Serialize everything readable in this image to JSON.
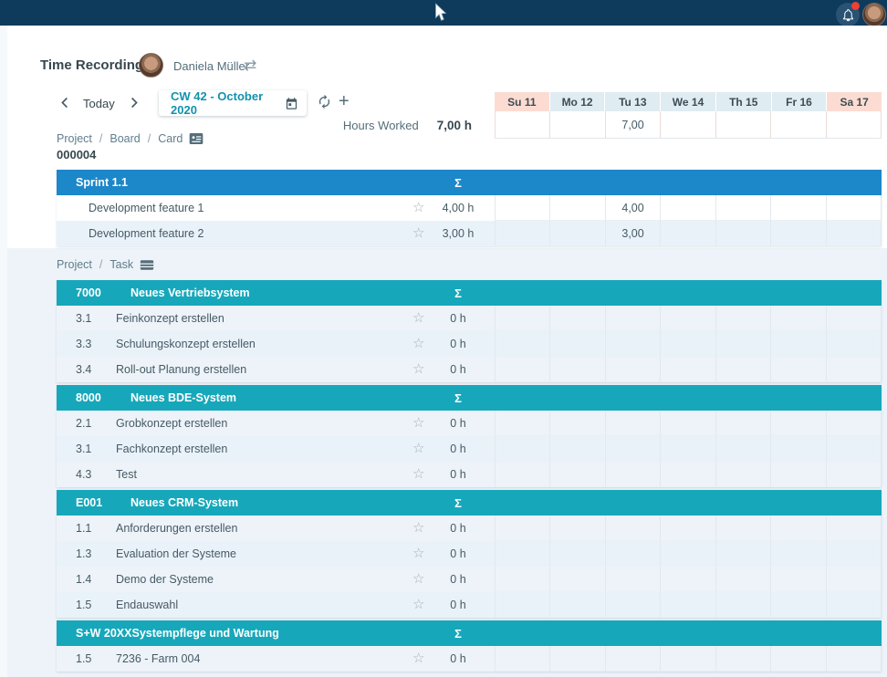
{
  "header": {
    "title": "Time Recording",
    "user_name": "Daniela Müller"
  },
  "toolbar": {
    "today_label": "Today",
    "period_value": "CW 42 - October 2020"
  },
  "week": {
    "days": [
      {
        "label": "Su 11",
        "weekend": true
      },
      {
        "label": "Mo 12",
        "weekend": false
      },
      {
        "label": "Tu 13",
        "weekend": false
      },
      {
        "label": "We 14",
        "weekend": false
      },
      {
        "label": "Th 15",
        "weekend": false
      },
      {
        "label": "Fr 16",
        "weekend": false
      },
      {
        "label": "Sa 17",
        "weekend": true
      }
    ],
    "hours_worked_label": "Hours Worked",
    "hours_worked_total": "7,00 h",
    "day_totals": [
      "",
      "",
      "7,00",
      "",
      "",
      "",
      ""
    ]
  },
  "board_section": {
    "breadcrumb": [
      "Project",
      "Board",
      "Card"
    ],
    "board_id": "000004",
    "table": {
      "style": "blue",
      "code": "",
      "name": "Sprint 1.1",
      "sigma": "Σ",
      "rows": [
        {
          "code": "",
          "name": "Development feature 1",
          "total": "4,00 h",
          "cells": [
            "",
            "",
            "4,00",
            "",
            "",
            "",
            ""
          ]
        },
        {
          "code": "",
          "name": "Development feature 2",
          "total": "3,00 h",
          "cells": [
            "",
            "",
            "3,00",
            "",
            "",
            "",
            ""
          ]
        }
      ]
    }
  },
  "task_section": {
    "breadcrumb": [
      "Project",
      "Task"
    ],
    "tables": [
      {
        "style": "teal",
        "code": "7000",
        "name": "Neues Vertriebsystem",
        "sigma": "Σ",
        "rows": [
          {
            "code": "3.1",
            "name": "Feinkonzept erstellen",
            "total": "0 h",
            "cells": [
              "",
              "",
              "",
              "",
              "",
              "",
              ""
            ]
          },
          {
            "code": "3.3",
            "name": "Schulungskonzept erstellen",
            "total": "0 h",
            "cells": [
              "",
              "",
              "",
              "",
              "",
              "",
              ""
            ]
          },
          {
            "code": "3.4",
            "name": "Roll-out Planung erstellen",
            "total": "0 h",
            "cells": [
              "",
              "",
              "",
              "",
              "",
              "",
              ""
            ]
          }
        ]
      },
      {
        "style": "teal",
        "code": "8000",
        "name": "Neues BDE-System",
        "sigma": "Σ",
        "rows": [
          {
            "code": "2.1",
            "name": "Grobkonzept erstellen",
            "total": "0 h",
            "cells": [
              "",
              "",
              "",
              "",
              "",
              "",
              ""
            ]
          },
          {
            "code": "3.1",
            "name": "Fachkonzept erstellen",
            "total": "0 h",
            "cells": [
              "",
              "",
              "",
              "",
              "",
              "",
              ""
            ]
          },
          {
            "code": "4.3",
            "name": "Test",
            "total": "0 h",
            "cells": [
              "",
              "",
              "",
              "",
              "",
              "",
              ""
            ]
          }
        ]
      },
      {
        "style": "teal",
        "code": "E001",
        "name": "Neues CRM-System",
        "sigma": "Σ",
        "rows": [
          {
            "code": "1.1",
            "name": "Anforderungen erstellen",
            "total": "0 h",
            "cells": [
              "",
              "",
              "",
              "",
              "",
              "",
              ""
            ]
          },
          {
            "code": "1.3",
            "name": "Evaluation der Systeme",
            "total": "0 h",
            "cells": [
              "",
              "",
              "",
              "",
              "",
              "",
              ""
            ]
          },
          {
            "code": "1.4",
            "name": "Demo der Systeme",
            "total": "0 h",
            "cells": [
              "",
              "",
              "",
              "",
              "",
              "",
              ""
            ]
          },
          {
            "code": "1.5",
            "name": "Endauswahl",
            "total": "0 h",
            "cells": [
              "",
              "",
              "",
              "",
              "",
              "",
              ""
            ]
          }
        ]
      },
      {
        "style": "teal",
        "code": "S+W 20XX",
        "name": "Systempflege und Wartung",
        "sigma": "Σ",
        "rows": [
          {
            "code": "1.5",
            "name": "7236 - Farm 004",
            "total": "0 h",
            "cells": [
              "",
              "",
              "",
              "",
              "",
              "",
              ""
            ]
          }
        ]
      }
    ]
  },
  "icons": {
    "swap": "⇄",
    "star": "☆",
    "plus": "+"
  },
  "colors": {
    "topbar": "#0e3a5b",
    "blue_header": "#1c87c9",
    "teal_header": "#17a7ba",
    "weekend_bg": "#fcdcd2",
    "weekday_bg": "#dfecf2",
    "alt_row_bg": "#eaf2f9",
    "page_bg": "#edf3f9",
    "badge_red": "#ef4034",
    "period_text": "#1292ae"
  }
}
